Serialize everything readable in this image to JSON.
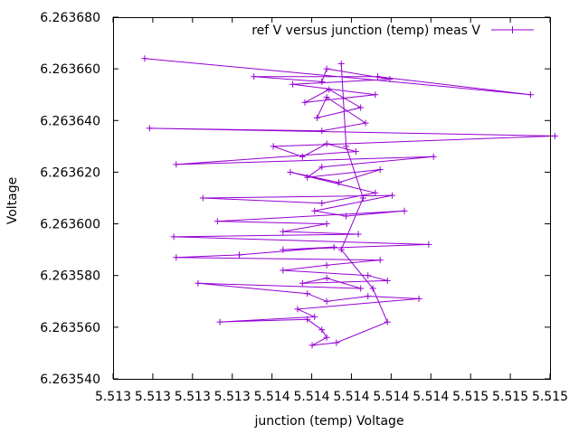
{
  "chart_data": {
    "type": "line",
    "title": "",
    "xlabel": "junction (temp) Voltage",
    "ylabel": "Voltage",
    "xlim": [
      5.5133,
      5.5151
    ],
    "ylim": [
      6.26354,
      6.26368
    ],
    "x_tick_labels": [
      "5.513",
      "5.513",
      "5.513",
      "5.513",
      "5.514",
      "5.514",
      "5.514",
      "5.514",
      "5.514",
      "5.515",
      "5.515",
      "5.515"
    ],
    "y_tick_labels": [
      "6.263540",
      "6.263560",
      "6.263580",
      "6.263600",
      "6.263620",
      "6.263640",
      "6.263660",
      "6.263680"
    ],
    "grid": false,
    "legend_position": "top-right",
    "marker": "plus",
    "series": [
      {
        "name": "ref V versus junction (temp) meas V",
        "color": "#9400d3",
        "points": [
          [
            5.51343,
            6.263664
          ],
          [
            5.51502,
            6.26365
          ],
          [
            5.51439,
            6.263657
          ],
          [
            5.51388,
            6.263657
          ],
          [
            5.51416,
            6.263655
          ],
          [
            5.51418,
            6.26366
          ],
          [
            5.51444,
            6.263656
          ],
          [
            5.51404,
            6.263654
          ],
          [
            5.51438,
            6.26365
          ],
          [
            5.51409,
            6.263647
          ],
          [
            5.51419,
            6.263652
          ],
          [
            5.51432,
            6.263645
          ],
          [
            5.51414,
            6.263641
          ],
          [
            5.51418,
            6.263649
          ],
          [
            5.51434,
            6.263639
          ],
          [
            5.51416,
            6.263636
          ],
          [
            5.51345,
            6.263637
          ],
          [
            5.51512,
            6.263634
          ],
          [
            5.51396,
            6.26363
          ],
          [
            5.51408,
            6.263626
          ],
          [
            5.51418,
            6.263631
          ],
          [
            5.5143,
            6.263628
          ],
          [
            5.51356,
            6.263623
          ],
          [
            5.51462,
            6.263626
          ],
          [
            5.51416,
            6.263622
          ],
          [
            5.5141,
            6.263618
          ],
          [
            5.5144,
            6.263621
          ],
          [
            5.51423,
            6.263616
          ],
          [
            5.51403,
            6.26362
          ],
          [
            5.51438,
            6.263612
          ],
          [
            5.51416,
            6.263608
          ],
          [
            5.51367,
            6.26361
          ],
          [
            5.51445,
            6.263611
          ],
          [
            5.51413,
            6.263605
          ],
          [
            5.51426,
            6.263603
          ],
          [
            5.5145,
            6.263605
          ],
          [
            5.51373,
            6.263601
          ],
          [
            5.51418,
            6.2636
          ],
          [
            5.514,
            6.263597
          ],
          [
            5.51431,
            6.263596
          ],
          [
            5.51355,
            6.263595
          ],
          [
            5.5146,
            6.263592
          ],
          [
            5.514,
            6.26359
          ],
          [
            5.51421,
            6.263591
          ],
          [
            5.51382,
            6.263588
          ],
          [
            5.51356,
            6.263587
          ],
          [
            5.5144,
            6.263586
          ],
          [
            5.51418,
            6.263584
          ],
          [
            5.514,
            6.263582
          ],
          [
            5.51435,
            6.26358
          ],
          [
            5.51443,
            6.263578
          ],
          [
            5.51408,
            6.263577
          ],
          [
            5.51418,
            6.263579
          ],
          [
            5.51432,
            6.263575
          ],
          [
            5.51365,
            6.263577
          ],
          [
            5.5141,
            6.263573
          ],
          [
            5.51418,
            6.26357
          ],
          [
            5.51435,
            6.263572
          ],
          [
            5.51456,
            6.263571
          ],
          [
            5.51406,
            6.263567
          ],
          [
            5.51413,
            6.263564
          ],
          [
            5.51374,
            6.263562
          ],
          [
            5.5141,
            6.263563
          ],
          [
            5.51416,
            6.263559
          ],
          [
            5.51418,
            6.263556
          ],
          [
            5.51412,
            6.263553
          ],
          [
            5.51422,
            6.263554
          ],
          [
            5.51443,
            6.263562
          ],
          [
            5.51437,
            6.263575
          ],
          [
            5.51424,
            6.26359
          ],
          [
            5.51433,
            6.26361
          ],
          [
            5.51426,
            6.26363
          ],
          [
            5.51424,
            6.263662
          ]
        ]
      }
    ]
  }
}
